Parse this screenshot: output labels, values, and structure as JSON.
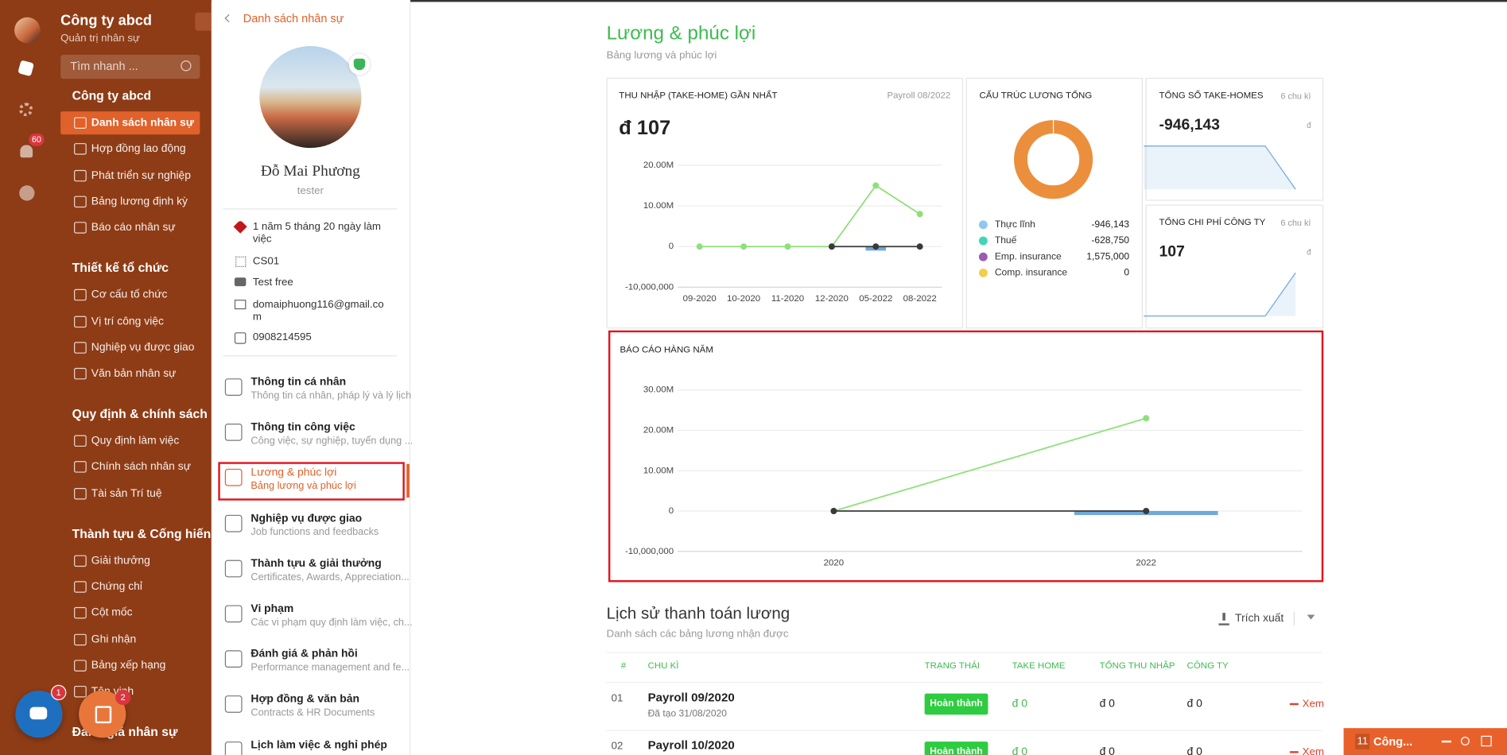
{
  "sidebar": {
    "company": "Công ty abcd",
    "role": "Quản trị nhân sự",
    "search_placeholder": "Tìm nhanh ...",
    "notification_count": "60",
    "groups": [
      {
        "title": "Công ty abcd",
        "items": [
          "Danh sách nhân sự",
          "Hợp đồng lao động",
          "Phát triển sự nghiệp",
          "Bảng lương định kỳ",
          "Báo cáo nhân sự"
        ]
      },
      {
        "title": "Thiết kế tổ chức",
        "items": [
          "Cơ cấu tổ chức",
          "Vị trí công việc",
          "Nghiệp vụ được giao",
          "Văn bản nhân sự"
        ]
      },
      {
        "title": "Quy định & chính sách",
        "items": [
          "Quy định làm việc",
          "Chính sách nhân sự",
          "Tài sản Trí tuệ"
        ]
      },
      {
        "title": "Thành tựu & Cống hiến",
        "items": [
          "Giải thưởng",
          "Chứng chỉ",
          "Cột mốc",
          "Ghi nhận",
          "Bảng xếp hạng",
          "Tôn vinh"
        ]
      },
      {
        "title": "Đánh giá nhân sự",
        "items": []
      }
    ],
    "chat_badge": "1",
    "task_badge": "2"
  },
  "profile": {
    "back": "Danh sách nhân sự",
    "name": "Đỗ Mai Phương",
    "job_title": "tester",
    "tenure": "1 năm 5 tháng 20 ngày làm việc",
    "code": "CS01",
    "plan": "Test free",
    "email": "domaiphuong116@gmail.com",
    "phone": "0908214595",
    "menu": [
      {
        "title": "Thông tin cá nhân",
        "subtitle": "Thông tin cá nhân, pháp lý và lý lịch"
      },
      {
        "title": "Thông tin công việc",
        "subtitle": "Công việc, sự nghiệp, tuyển dụng ..."
      },
      {
        "title": "Lương & phúc lợi",
        "subtitle": "Bảng lương và phúc lợi"
      },
      {
        "title": "Nghiệp vụ được giao",
        "subtitle": "Job functions and feedbacks"
      },
      {
        "title": "Thành tựu & giải thưởng",
        "subtitle": "Certificates, Awards, Appreciation..."
      },
      {
        "title": "Vi phạm",
        "subtitle": "Các vi phạm quy định làm việc, ch..."
      },
      {
        "title": "Đánh giá & phản hồi",
        "subtitle": "Performance management and fe..."
      },
      {
        "title": "Hợp đồng & văn bản",
        "subtitle": "Contracts & HR Documents"
      },
      {
        "title": "Lịch làm việc & nghỉ phép",
        "subtitle": ""
      }
    ]
  },
  "main": {
    "title": "Lương & phúc lợi",
    "subtitle": "Bảng lương và phúc lợi",
    "takehome": {
      "label": "THU NHẬP (TAKE-HOME) GẦN NHẤT",
      "period": "Payroll 08/2022",
      "amount": "đ 107",
      "chart": {
        "type": "line",
        "categories": [
          "09-2020",
          "10-2020",
          "11-2020",
          "12-2020",
          "05-2022",
          "08-2022"
        ],
        "ylim": [
          -10000000,
          20000000
        ],
        "yticks": [
          {
            "value": 20000000,
            "label": "20.00M"
          },
          {
            "value": 10000000,
            "label": "10.00M"
          },
          0,
          {
            "value": -10000000,
            "label": "-10,000,000"
          }
        ],
        "series": [
          {
            "type": "bar",
            "color": "#6fa8dc",
            "values": [
              0,
              0,
              0,
              0,
              -1000000,
              0
            ]
          },
          {
            "type": "line",
            "color": "#8ee07a",
            "values": [
              0,
              0,
              0,
              0,
              15000000,
              8000000
            ]
          },
          {
            "type": "line",
            "color": "#3a3a3a",
            "values": [
              null,
              null,
              null,
              0,
              0,
              0
            ]
          }
        ]
      }
    },
    "structure": {
      "label": "CẤU TRÚC LƯƠNG TỔNG",
      "type": "pie",
      "ring_color": "#eb8f3c",
      "names": [
        "Thực lĩnh",
        "Thuế",
        "Emp. insurance",
        "Comp. insurance"
      ],
      "colors": [
        "#8cc8f0",
        "#3fd6b4",
        "#9b59b6",
        "#f5cd4c"
      ],
      "values": [
        -946143,
        -628750,
        1575000,
        0
      ],
      "value_labels": [
        "-946,143",
        "-628,750",
        "1,575,000",
        "0"
      ]
    },
    "take_homes": {
      "label": "TỔNG SỐ TAKE-HOMES",
      "cycles": "6 chu kì",
      "amount": "-946,143",
      "unit": "đ",
      "chart": {
        "type": "area",
        "color": "#6fa8dc",
        "ylim": [
          -946143,
          0
        ],
        "values": [
          0,
          0,
          0,
          0,
          0,
          -946143
        ]
      }
    },
    "company_cost": {
      "label": "TỔNG CHI PHÍ CÔNG TY",
      "cycles": "6 chu kì",
      "amount": "107",
      "unit": "đ",
      "chart": {
        "type": "area",
        "color": "#6fa8dc",
        "ylim": [
          0,
          107
        ],
        "values": [
          0,
          0,
          0,
          0,
          0,
          107
        ]
      }
    },
    "annual": {
      "label": "BÁO CÁO HÀNG NĂM",
      "chart": {
        "type": "line",
        "categories": [
          "2020",
          "2022"
        ],
        "ylim": [
          -10000000,
          30000000
        ],
        "yticks": [
          {
            "value": 30000000,
            "label": "30.00M"
          },
          {
            "value": 20000000,
            "label": "20.00M"
          },
          {
            "value": 10000000,
            "label": "10.00M"
          },
          0,
          {
            "value": -10000000,
            "label": "-10,000,000"
          }
        ],
        "series": [
          {
            "type": "bar",
            "color": "#6fa8dc",
            "values": [
              0,
              -1000000
            ]
          },
          {
            "type": "line",
            "color": "#8ee07a",
            "values": [
              0,
              23000000
            ]
          },
          {
            "type": "line",
            "color": "#3a3a3a",
            "values": [
              0,
              0
            ]
          }
        ]
      }
    },
    "history": {
      "title": "Lịch sử thanh toán lương",
      "subtitle": "Danh sách các bảng lương nhận được",
      "export": "Trích xuất",
      "columns": [
        "#",
        "CHU KÌ",
        "TRẠNG THÁI",
        "TAKE HOME",
        "TỔNG THU NHẬP",
        "CÔNG TY"
      ],
      "rows": [
        {
          "index": "01",
          "period": "Payroll 09/2020",
          "created": "Đã tạo 31/08/2020",
          "status": "Hoàn thành",
          "take_home": "đ 0",
          "total": "đ 0",
          "company": "đ 0",
          "action": "Xem"
        },
        {
          "index": "02",
          "period": "Payroll 10/2020",
          "created": "",
          "status": "Hoàn thành",
          "take_home": "đ 0",
          "total": "đ 0",
          "company": "đ 0",
          "action": "Xem"
        }
      ]
    }
  },
  "chat_widget": {
    "count": "11",
    "label": "Công..."
  }
}
